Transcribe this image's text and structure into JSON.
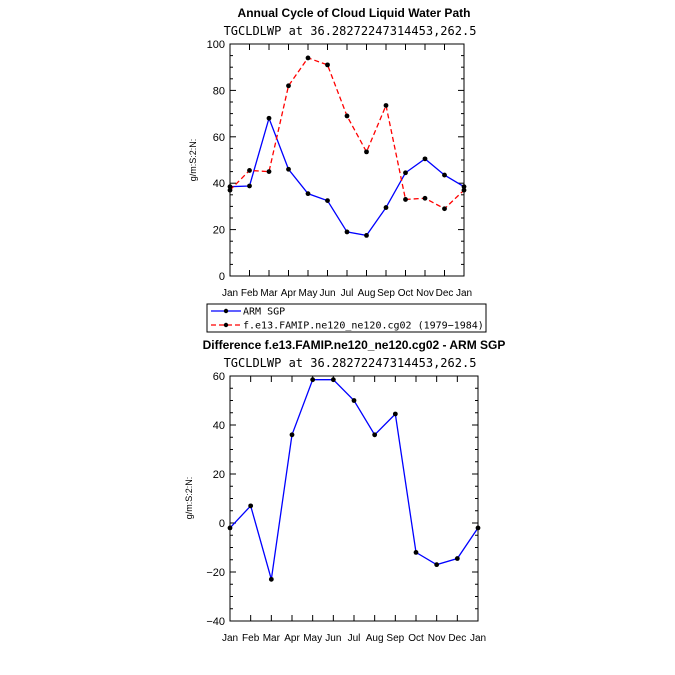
{
  "chart_data": [
    {
      "type": "line",
      "title": "Annual Cycle of Cloud Liquid Water Path",
      "subtitle": "TGCLDLWP at 36.28272247314453,262.5",
      "ylabel": "g/m:S:2:N:",
      "xlabel": "",
      "ylim": [
        0,
        100
      ],
      "yticks": [
        "0",
        "20",
        "40",
        "60",
        "80",
        "100"
      ],
      "categories": [
        "Jan",
        "Feb",
        "Mar",
        "Apr",
        "May",
        "Jun",
        "Jul",
        "Aug",
        "Sep",
        "Oct",
        "Nov",
        "Dec",
        "Jan"
      ],
      "series": [
        {
          "name": "ARM SGP",
          "color": "#0000ff",
          "dash": "solid",
          "values": [
            38.5,
            38.8,
            68,
            46,
            35.5,
            32.5,
            19,
            17.5,
            29.5,
            44.5,
            50.5,
            43.5,
            38.5
          ]
        },
        {
          "name": "f.e13.FAMIP.ne120_ne120.cg02 (1979−1984)",
          "color": "#ff0000",
          "dash": "dashed",
          "values": [
            37,
            45.5,
            45,
            82,
            94,
            91,
            69,
            53.5,
            73.5,
            33,
            33.5,
            29,
            37
          ]
        }
      ],
      "legend": "bottom-left"
    },
    {
      "type": "line",
      "title": "Difference f.e13.FAMIP.ne120_ne120.cg02 - ARM SGP",
      "subtitle": "TGCLDLWP at 36.28272247314453,262.5",
      "ylabel": "g/m:S:2:N:",
      "xlabel": "",
      "ylim": [
        -40,
        60
      ],
      "yticks": [
        "−40",
        "−20",
        "0",
        "20",
        "40",
        "60"
      ],
      "categories": [
        "Jan",
        "Feb",
        "Mar",
        "Apr",
        "May",
        "Jun",
        "Jul",
        "Aug",
        "Sep",
        "Oct",
        "Nov",
        "Dec",
        "Jan"
      ],
      "series": [
        {
          "name": "Difference",
          "color": "#0000ff",
          "dash": "solid",
          "values": [
            -2,
            7,
            -23,
            36,
            58.5,
            58.5,
            50,
            36,
            44.5,
            -12,
            -17,
            -14.5,
            -2
          ]
        }
      ]
    }
  ]
}
